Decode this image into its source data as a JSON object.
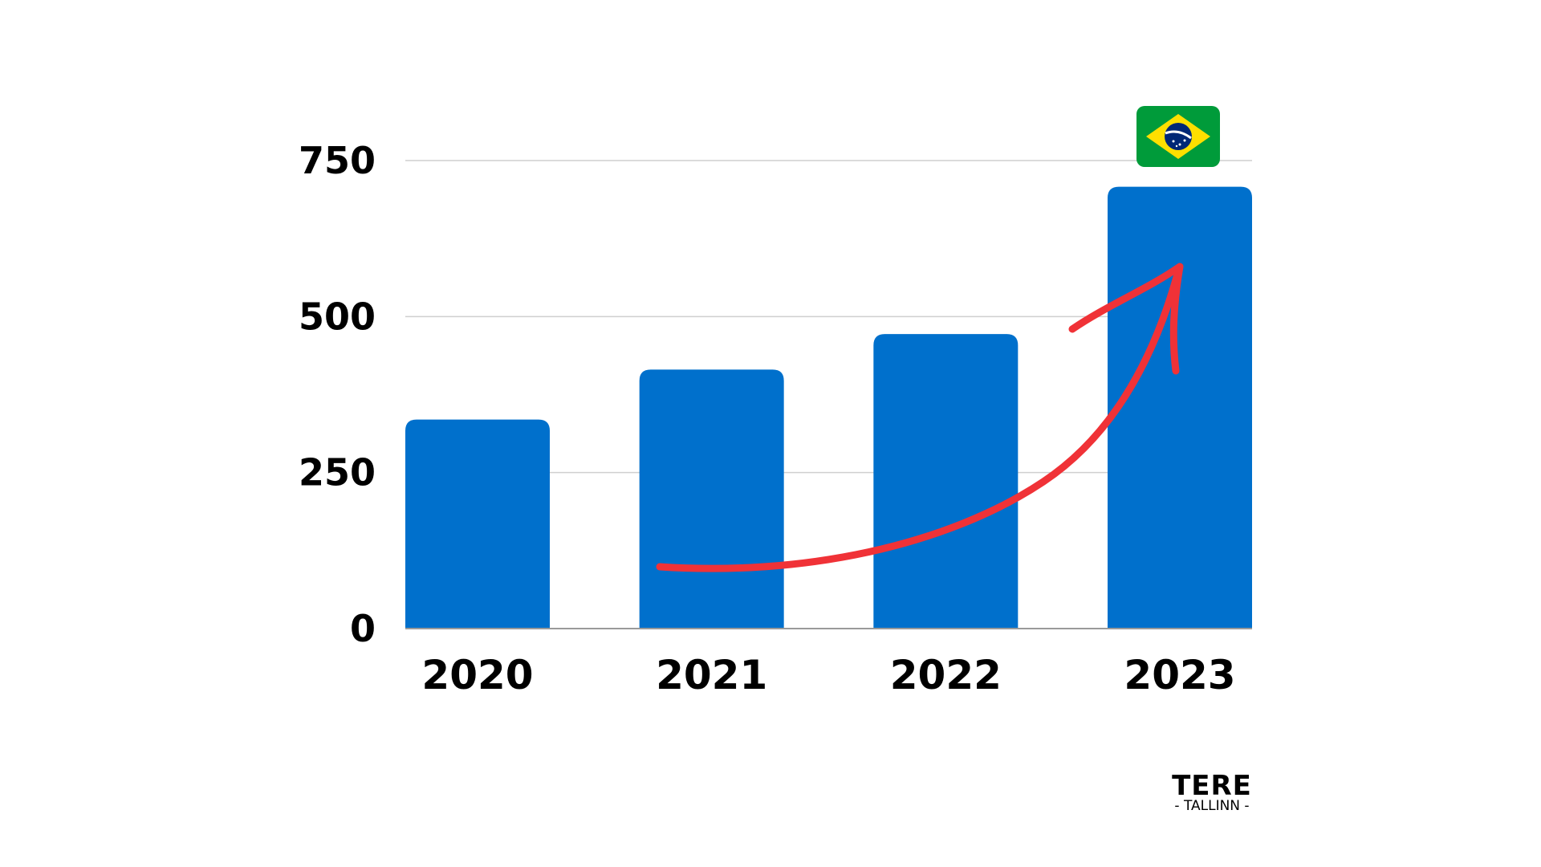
{
  "chart_data": {
    "type": "bar",
    "categories": [
      "2020",
      "2021",
      "2022",
      "2023"
    ],
    "values": [
      335,
      415,
      472,
      708
    ],
    "ylim": [
      0,
      750
    ],
    "yticks": [
      "0",
      "250",
      "500",
      "750"
    ],
    "grid": true,
    "bar_color": "#0070CC",
    "annotations": [
      {
        "type": "arrow",
        "color": "#F03237",
        "description": "upward trend arrow from 2021 to 2023"
      },
      {
        "type": "flag",
        "name": "brazil-flag-icon",
        "category": "2023"
      }
    ]
  },
  "brand": {
    "name": "TERE",
    "sub": "- TALLINN -"
  }
}
